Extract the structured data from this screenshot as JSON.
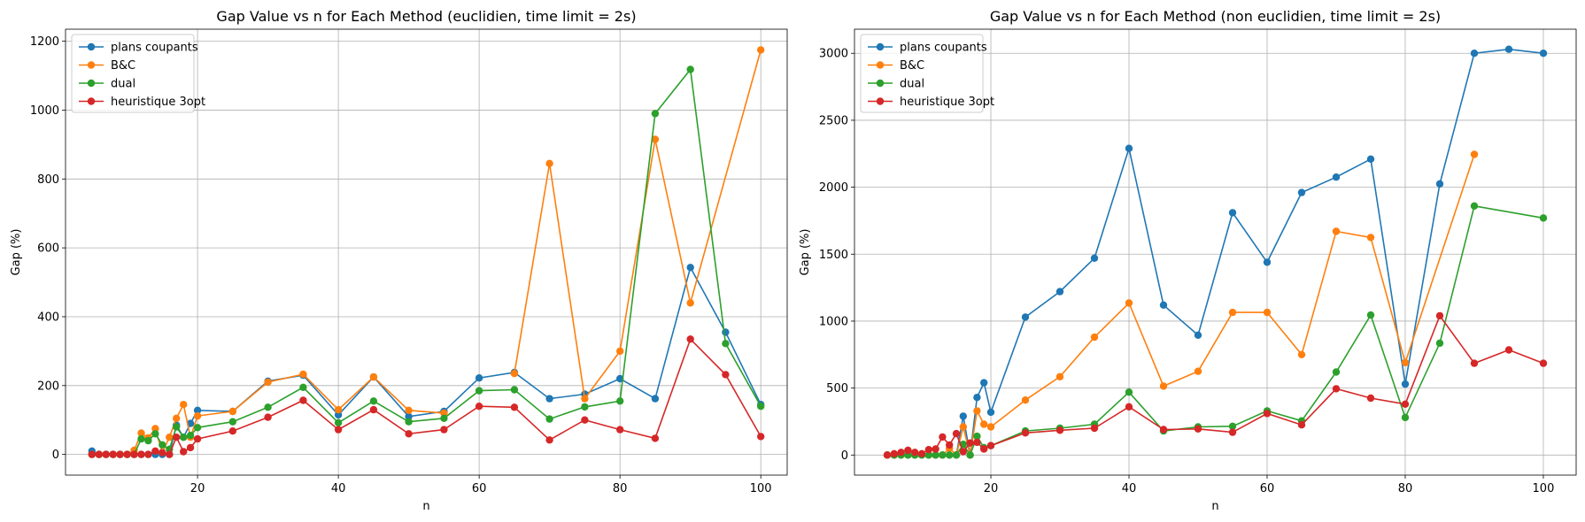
{
  "chart_data": [
    {
      "type": "line",
      "title": "Gap Value vs n for Each Method (euclidien, time limit = 2s)",
      "xlabel": "n",
      "ylabel": "Gap (%)",
      "xlim": [
        1.25,
        103.75
      ],
      "ylim": [
        -60,
        1235
      ],
      "xticks": [
        20,
        40,
        60,
        80,
        100
      ],
      "yticks": [
        0,
        200,
        400,
        600,
        800,
        1000,
        1200
      ],
      "grid": true,
      "legend_position": "top-left",
      "series": [
        {
          "name": "plans coupants",
          "color": "#1f77b4",
          "x": [
            5,
            6,
            7,
            8,
            9,
            10,
            11,
            12,
            13,
            14,
            15,
            16,
            17,
            18,
            19,
            20,
            25,
            30,
            35,
            40,
            45,
            50,
            55,
            60,
            65,
            70,
            75,
            80,
            85,
            90,
            95,
            100
          ],
          "y": [
            10,
            0,
            0,
            0,
            0,
            0,
            0,
            0,
            0,
            0,
            0,
            0,
            85,
            50,
            90,
            128,
            125,
            213,
            230,
            115,
            225,
            110,
            125,
            222,
            238,
            162,
            175,
            220,
            162,
            543,
            355,
            145
          ]
        },
        {
          "name": "B&C",
          "color": "#ff7f0e",
          "x": [
            5,
            6,
            7,
            8,
            9,
            10,
            11,
            12,
            13,
            14,
            15,
            16,
            17,
            18,
            19,
            20,
            25,
            30,
            35,
            40,
            45,
            50,
            55,
            60,
            65,
            70,
            75,
            80,
            85,
            90,
            100
          ],
          "y": [
            0,
            0,
            0,
            0,
            0,
            0,
            12,
            62,
            48,
            75,
            5,
            50,
            105,
            145,
            50,
            112,
            125,
            210,
            233,
            130,
            225,
            128,
            120,
            null,
            235,
            845,
            162,
            300,
            915,
            440,
            1175
          ]
        },
        {
          "name": "dual",
          "color": "#2ca02c",
          "x": [
            5,
            6,
            7,
            8,
            9,
            10,
            11,
            12,
            13,
            14,
            15,
            16,
            17,
            18,
            19,
            20,
            25,
            30,
            35,
            40,
            45,
            50,
            55,
            60,
            65,
            70,
            75,
            80,
            85,
            90,
            95,
            100
          ],
          "y": [
            0,
            0,
            0,
            0,
            0,
            0,
            0,
            45,
            40,
            60,
            28,
            15,
            80,
            50,
            55,
            78,
            95,
            137,
            195,
            92,
            155,
            95,
            105,
            185,
            188,
            103,
            138,
            155,
            990,
            1118,
            322,
            140
          ]
        },
        {
          "name": "heuristique 3opt",
          "color": "#d62728",
          "x": [
            5,
            6,
            7,
            8,
            9,
            10,
            11,
            12,
            13,
            14,
            15,
            16,
            17,
            18,
            19,
            20,
            25,
            30,
            35,
            40,
            45,
            50,
            55,
            60,
            65,
            70,
            75,
            80,
            85,
            90,
            95,
            100
          ],
          "y": [
            0,
            0,
            0,
            0,
            0,
            0,
            0,
            0,
            0,
            10,
            5,
            0,
            50,
            8,
            20,
            45,
            68,
            108,
            157,
            72,
            130,
            60,
            72,
            140,
            137,
            42,
            100,
            72,
            47,
            335,
            232,
            52
          ]
        }
      ]
    },
    {
      "type": "line",
      "title": "Gap Value vs n for Each Method (non euclidien, time limit = 2s)",
      "xlabel": "n",
      "ylabel": "Gap (%)",
      "xlim": [
        0.25,
        104.75
      ],
      "ylim": [
        -150,
        3180
      ],
      "xticks": [
        20,
        40,
        60,
        80,
        100
      ],
      "yticks": [
        0,
        500,
        1000,
        1500,
        2000,
        2500,
        3000
      ],
      "grid": true,
      "legend_position": "top-left",
      "series": [
        {
          "name": "plans coupants",
          "color": "#1f77b4",
          "x": [
            5,
            6,
            7,
            8,
            9,
            10,
            11,
            12,
            13,
            14,
            15,
            16,
            17,
            18,
            19,
            20,
            25,
            30,
            35,
            40,
            45,
            50,
            55,
            60,
            65,
            70,
            75,
            80,
            85,
            90,
            95,
            100
          ],
          "y": [
            0,
            0,
            0,
            0,
            0,
            0,
            0,
            0,
            0,
            0,
            0,
            290,
            0,
            430,
            540,
            320,
            1030,
            1220,
            1470,
            2290,
            1120,
            895,
            1810,
            1440,
            1960,
            2075,
            2210,
            530,
            2025,
            3000,
            3030,
            3000
          ]
        },
        {
          "name": "B&C",
          "color": "#ff7f0e",
          "x": [
            5,
            6,
            7,
            8,
            9,
            10,
            11,
            12,
            13,
            14,
            15,
            16,
            17,
            18,
            19,
            20,
            25,
            30,
            35,
            40,
            45,
            50,
            55,
            60,
            65,
            70,
            75,
            80,
            90
          ],
          "y": [
            0,
            0,
            0,
            0,
            0,
            0,
            0,
            0,
            0,
            50,
            0,
            210,
            0,
            330,
            230,
            210,
            410,
            585,
            880,
            1135,
            515,
            625,
            1065,
            1065,
            750,
            1670,
            1625,
            690,
            2245
          ]
        },
        {
          "name": "dual",
          "color": "#2ca02c",
          "x": [
            5,
            6,
            7,
            8,
            9,
            10,
            11,
            12,
            13,
            14,
            15,
            16,
            17,
            18,
            19,
            20,
            25,
            30,
            35,
            40,
            45,
            50,
            55,
            60,
            65,
            70,
            75,
            80,
            85,
            90,
            100
          ],
          "y": [
            0,
            0,
            0,
            0,
            0,
            0,
            0,
            0,
            0,
            0,
            0,
            80,
            0,
            140,
            55,
            70,
            180,
            200,
            230,
            470,
            180,
            210,
            215,
            330,
            255,
            620,
            1045,
            280,
            835,
            1860,
            1770
          ]
        },
        {
          "name": "heuristique 3opt",
          "color": "#d62728",
          "x": [
            5,
            6,
            7,
            8,
            9,
            10,
            11,
            12,
            13,
            14,
            15,
            16,
            17,
            18,
            19,
            20,
            25,
            30,
            35,
            40,
            45,
            50,
            55,
            60,
            65,
            70,
            75,
            80,
            85,
            90,
            95,
            100
          ],
          "y": [
            0,
            10,
            20,
            35,
            20,
            10,
            40,
            45,
            135,
            75,
            160,
            25,
            90,
            95,
            45,
            70,
            165,
            185,
            200,
            360,
            190,
            195,
            170,
            310,
            225,
            495,
            425,
            380,
            1040,
            685,
            785,
            685
          ]
        }
      ]
    }
  ]
}
